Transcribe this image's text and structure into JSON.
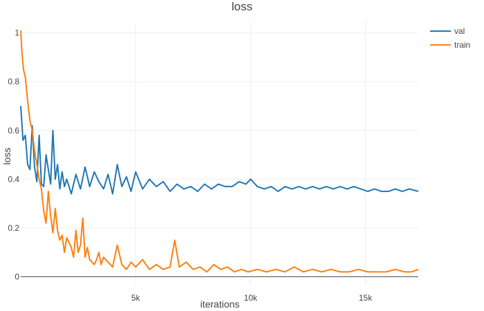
{
  "chart_data": {
    "type": "line",
    "title": "loss",
    "xlabel": "iterations",
    "ylabel": "loss",
    "xlim": [
      0,
      17300
    ],
    "ylim": [
      -0.03,
      1.05
    ],
    "grid": true,
    "legend_placement": "top-right",
    "x_ticks": [
      {
        "value": 5000,
        "label": "5k"
      },
      {
        "value": 10000,
        "label": "10k"
      },
      {
        "value": 15000,
        "label": "15k"
      }
    ],
    "y_ticks": [
      {
        "value": 0,
        "label": "0"
      },
      {
        "value": 0.2,
        "label": "0.2"
      },
      {
        "value": 0.4,
        "label": "0.4"
      },
      {
        "value": 0.6,
        "label": "0.6"
      },
      {
        "value": 0.8,
        "label": "0.8"
      },
      {
        "value": 1,
        "label": "1"
      }
    ],
    "series": [
      {
        "name": "val",
        "color": "#1f77b4",
        "x": [
          0,
          100,
          200,
          300,
          400,
          500,
          600,
          700,
          800,
          900,
          1000,
          1100,
          1200,
          1300,
          1400,
          1500,
          1600,
          1700,
          1800,
          1900,
          2000,
          2200,
          2400,
          2600,
          2800,
          3000,
          3200,
          3400,
          3600,
          3800,
          4000,
          4200,
          4400,
          4600,
          4800,
          5000,
          5300,
          5600,
          5900,
          6200,
          6500,
          6800,
          7100,
          7400,
          7700,
          8000,
          8300,
          8600,
          8900,
          9200,
          9500,
          9800,
          10000,
          10300,
          10600,
          10900,
          11200,
          11500,
          11800,
          12100,
          12400,
          12700,
          13000,
          13300,
          13600,
          13900,
          14200,
          14500,
          14800,
          15100,
          15400,
          15700,
          16000,
          16300,
          16600,
          16900,
          17300
        ],
        "values": [
          0.7,
          0.56,
          0.58,
          0.46,
          0.44,
          0.62,
          0.45,
          0.39,
          0.58,
          0.38,
          0.37,
          0.5,
          0.44,
          0.38,
          0.6,
          0.4,
          0.46,
          0.36,
          0.43,
          0.37,
          0.4,
          0.34,
          0.42,
          0.36,
          0.45,
          0.37,
          0.43,
          0.39,
          0.36,
          0.42,
          0.34,
          0.46,
          0.37,
          0.41,
          0.35,
          0.43,
          0.36,
          0.4,
          0.37,
          0.39,
          0.35,
          0.38,
          0.36,
          0.37,
          0.35,
          0.38,
          0.36,
          0.38,
          0.37,
          0.37,
          0.39,
          0.38,
          0.4,
          0.37,
          0.36,
          0.37,
          0.35,
          0.37,
          0.36,
          0.37,
          0.36,
          0.37,
          0.36,
          0.37,
          0.36,
          0.37,
          0.36,
          0.37,
          0.36,
          0.35,
          0.36,
          0.35,
          0.35,
          0.36,
          0.35,
          0.36,
          0.35
        ]
      },
      {
        "name": "train",
        "color": "#ff7f0e",
        "x": [
          0,
          50,
          120,
          200,
          300,
          400,
          500,
          600,
          700,
          800,
          900,
          1000,
          1100,
          1200,
          1300,
          1400,
          1500,
          1600,
          1700,
          1800,
          1900,
          2000,
          2100,
          2200,
          2300,
          2400,
          2500,
          2600,
          2700,
          2800,
          2900,
          3000,
          3100,
          3200,
          3300,
          3400,
          3500,
          3600,
          3800,
          4000,
          4200,
          4400,
          4600,
          4800,
          5000,
          5300,
          5600,
          5900,
          6200,
          6500,
          6700,
          6900,
          7200,
          7500,
          7800,
          8100,
          8400,
          8700,
          9000,
          9300,
          9600,
          9900,
          10300,
          10700,
          11100,
          11500,
          11900,
          12300,
          12700,
          13100,
          13500,
          13900,
          14300,
          14700,
          15100,
          15500,
          15900,
          16300,
          16700,
          17000,
          17300
        ],
        "values": [
          1.01,
          0.92,
          0.85,
          0.82,
          0.72,
          0.64,
          0.6,
          0.52,
          0.46,
          0.4,
          0.36,
          0.27,
          0.22,
          0.35,
          0.25,
          0.18,
          0.28,
          0.19,
          0.15,
          0.17,
          0.1,
          0.16,
          0.14,
          0.12,
          0.08,
          0.19,
          0.1,
          0.13,
          0.24,
          0.08,
          0.12,
          0.07,
          0.06,
          0.05,
          0.07,
          0.1,
          0.05,
          0.08,
          0.06,
          0.04,
          0.13,
          0.05,
          0.03,
          0.06,
          0.04,
          0.07,
          0.03,
          0.05,
          0.03,
          0.04,
          0.15,
          0.04,
          0.06,
          0.03,
          0.04,
          0.02,
          0.05,
          0.03,
          0.04,
          0.02,
          0.03,
          0.02,
          0.03,
          0.02,
          0.03,
          0.02,
          0.04,
          0.02,
          0.03,
          0.02,
          0.03,
          0.02,
          0.02,
          0.03,
          0.02,
          0.02,
          0.02,
          0.03,
          0.02,
          0.02,
          0.03
        ]
      }
    ]
  }
}
